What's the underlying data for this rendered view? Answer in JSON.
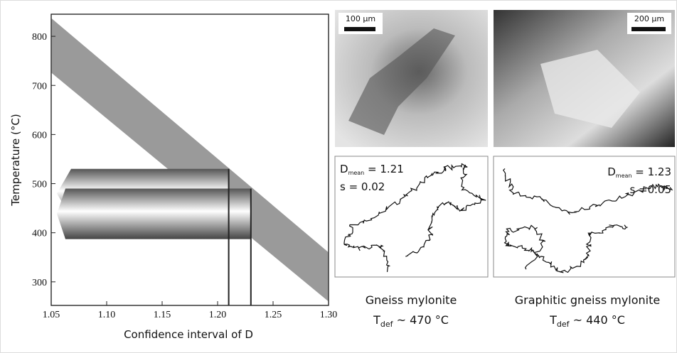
{
  "chart_data": {
    "type": "band",
    "xlabel": "Confidence interval of D",
    "ylabel": "Temperature (°C)",
    "xlim": [
      1.05,
      1.3
    ],
    "ylim": [
      252,
      845
    ],
    "xticks": [
      {
        "value": 1.05,
        "label": "1.05"
      },
      {
        "value": 1.1,
        "label": "1.10"
      },
      1.15,
      {
        "value": 1.2,
        "label": "1.20"
      },
      1.25,
      {
        "value": 1.3,
        "label": "1.30"
      }
    ],
    "yticks": [
      300,
      400,
      500,
      600,
      700,
      800
    ],
    "band": {
      "x": [
        1.05,
        1.3
      ],
      "upper": [
        837,
        360
      ],
      "lower": [
        726,
        260
      ],
      "color": "#9a9a9a"
    },
    "ranges": [
      {
        "d": 1.21,
        "tmin": 430,
        "tmax": 530
      },
      {
        "d": 1.23,
        "tmin": 387,
        "tmax": 490
      }
    ]
  },
  "panels": [
    {
      "scale_bar": "100 µm",
      "d_label": "D",
      "d_sub": "mean",
      "d_value": " = 1.21",
      "s": "s = 0.02",
      "name": "Gneiss mylonite",
      "t_label": "T",
      "t_sub": "def",
      "t_value": " ~ 470 °C"
    },
    {
      "scale_bar": "200 µm",
      "d_label": "D",
      "d_sub": "mean",
      "d_value": " = 1.23",
      "s": "s =0.05",
      "name": "Graphitic gneiss mylonite",
      "t_label": "T",
      "t_sub": "def",
      "t_value": " ~ 440 °C"
    }
  ]
}
